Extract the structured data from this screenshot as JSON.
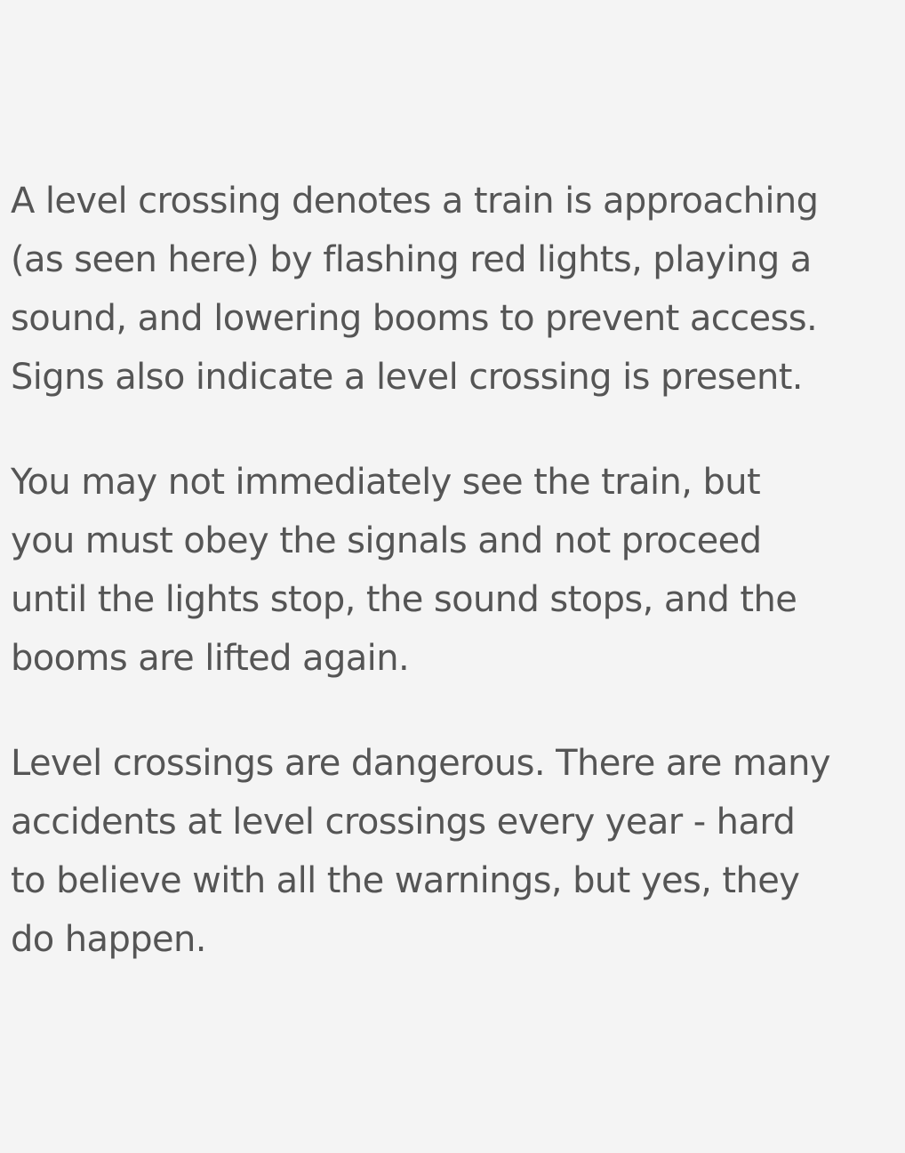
{
  "article": {
    "paragraphs": [
      {
        "lines": [
          "A level crossing denotes a train is approaching",
          "(as seen here) by flashing red lights, playing a",
          "sound, and lowering booms to prevent access.",
          "Signs also indicate a level crossing is present."
        ]
      },
      {
        "lines": [
          "You may not immediately see the train, but",
          "you must obey the signals and not proceed",
          "until the lights stop, the sound stops, and the",
          "booms are lifted again."
        ]
      },
      {
        "lines": [
          "Level crossings are dangerous. There are many",
          "accidents at level crossings every year - hard",
          "to believe with all the warnings, but yes, they",
          "do happen."
        ]
      }
    ]
  },
  "colors": {
    "background": "#f4f4f4",
    "text": "#555555"
  }
}
